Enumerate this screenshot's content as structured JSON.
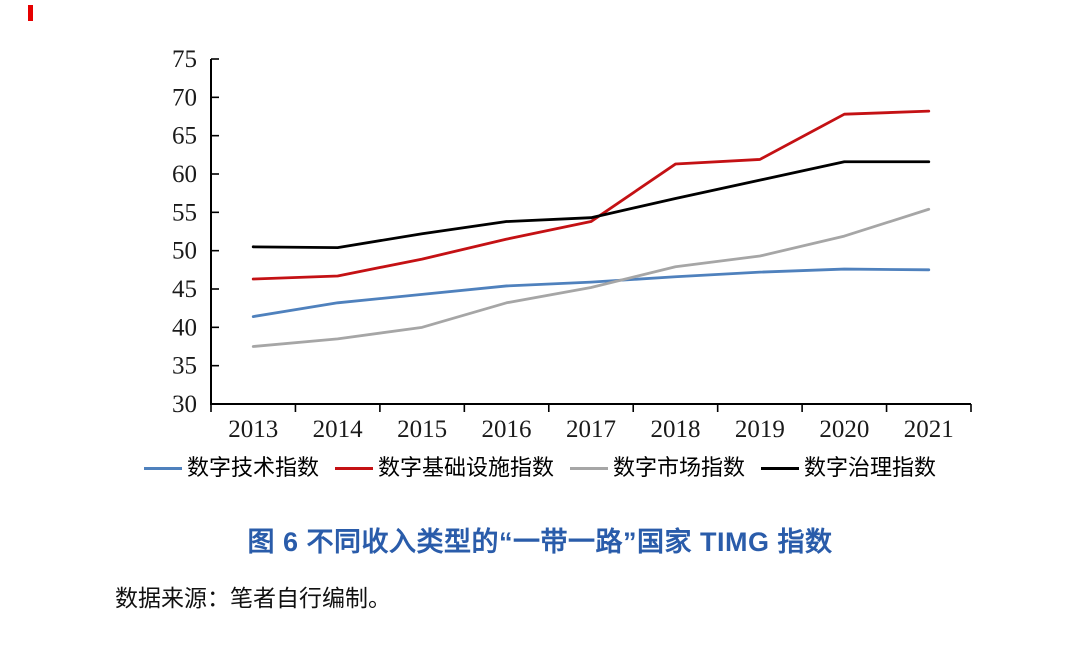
{
  "page": {
    "background": "#ffffff"
  },
  "decorations": {
    "top_left_marker_color": "#e60000"
  },
  "chart_data": {
    "type": "line",
    "title": "图 6 不同收入类型的“一带一路”国家 TIMG 指数",
    "title_color": "#2A5CAA",
    "categories": [
      "2013",
      "2014",
      "2015",
      "2016",
      "2017",
      "2018",
      "2019",
      "2020",
      "2021"
    ],
    "series": [
      {
        "name": "数字技术指数",
        "color": "#4F81BD",
        "values": [
          41.4,
          43.2,
          44.3,
          45.4,
          45.9,
          46.6,
          47.2,
          47.6,
          47.5
        ]
      },
      {
        "name": "数字基础设施指数",
        "color": "#C41114",
        "values": [
          46.3,
          46.7,
          48.9,
          51.5,
          53.8,
          61.3,
          61.9,
          67.8,
          68.2
        ]
      },
      {
        "name": "数字市场指数",
        "color": "#A6A6A6",
        "values": [
          37.5,
          38.5,
          40.0,
          43.2,
          45.2,
          47.9,
          49.3,
          51.9,
          55.4
        ]
      },
      {
        "name": "数字治理指数",
        "color": "#000000",
        "values": [
          50.5,
          50.4,
          52.2,
          53.8,
          54.3,
          56.8,
          59.2,
          61.6,
          61.6
        ]
      }
    ],
    "ylim": [
      30,
      75
    ],
    "yticks": [
      30,
      35,
      40,
      45,
      50,
      55,
      60,
      65,
      70,
      75
    ],
    "xlabel": "",
    "ylabel": "",
    "grid": false,
    "legend_position": "bottom",
    "axis_color": "#000000",
    "tick_label_color": "#1a1a1a"
  },
  "caption": {
    "source": "数据来源：笔者自行编制。"
  }
}
